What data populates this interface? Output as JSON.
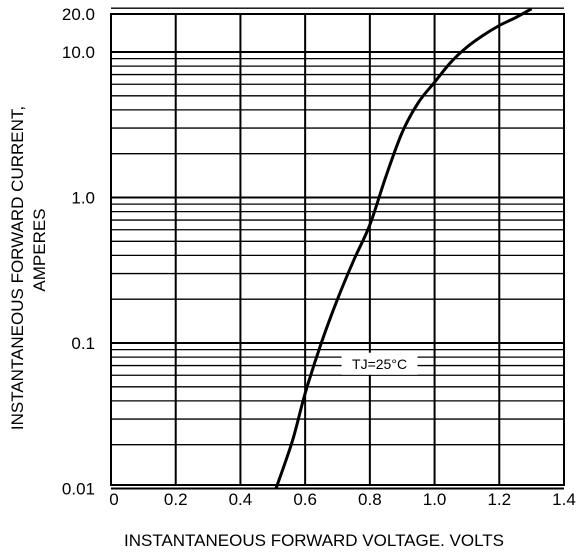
{
  "chart_data": {
    "type": "line",
    "title": "",
    "xlabel": "INSTANTANEOUS FORWARD VOLTAGE. VOLTS",
    "ylabel_lines": [
      "INSTANTANEOUS FORWARD CURRENT,",
      "AMPERES"
    ],
    "xlim": [
      0,
      1.4
    ],
    "ylim": [
      0.01,
      20
    ],
    "yscale": "log",
    "grid": true,
    "x_ticks": [
      0,
      0.2,
      0.4,
      0.6,
      0.8,
      1.0,
      1.2,
      1.4
    ],
    "x_tick_labels": [
      "0",
      "0.2",
      "0.4",
      "0.6",
      "0.8",
      "1.0",
      "1.2",
      "1.4"
    ],
    "y_ticks": [
      0.01,
      0.1,
      1.0,
      10.0,
      20.0
    ],
    "y_tick_labels": [
      "0.01",
      "0.1",
      "1.0",
      "10.0",
      "20.0"
    ],
    "annotations": [
      {
        "text": "TJ=25°C",
        "x": 0.83,
        "y": 0.072
      }
    ],
    "series": [
      {
        "color": "#000000",
        "x": [
          0.51,
          0.56,
          0.6,
          0.65,
          0.7,
          0.75,
          0.8,
          0.85,
          0.9,
          0.95,
          1.0,
          1.05,
          1.1,
          1.15,
          1.2,
          1.25,
          1.3
        ],
        "y": [
          0.01,
          0.021,
          0.045,
          0.1,
          0.2,
          0.37,
          0.65,
          1.4,
          2.8,
          4.5,
          6.2,
          8.5,
          10.8,
          13.0,
          15.2,
          17.2,
          19.8
        ]
      }
    ]
  }
}
